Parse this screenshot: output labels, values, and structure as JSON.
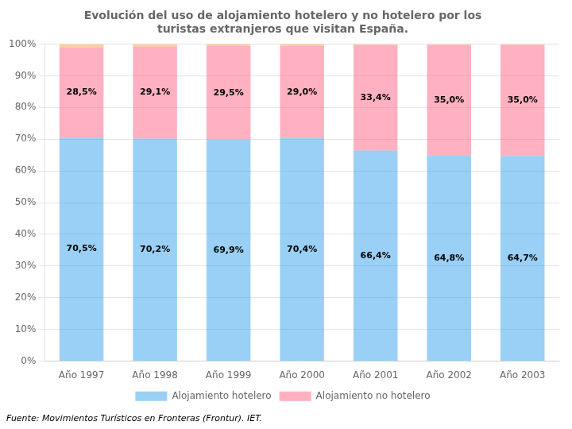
{
  "chart_data": {
    "type": "bar",
    "title": [
      "Evolución del uso de alojamiento hotelero y no hotelero por los",
      "turistas extranjeros que visitan España."
    ],
    "annotations": [
      "Fuente: Movimientos Turísticos en Fronteras (Frontur). IET."
    ],
    "categories": [
      "Año 1997",
      "Año 1998",
      "Año 1999",
      "Año 2000",
      "Año 2001",
      "Año 2002",
      "Año 2003"
    ],
    "series": [
      {
        "name": "Alojamiento hotelero",
        "values": [
          70.5,
          70.2,
          69.9,
          70.4,
          66.4,
          64.8,
          64.7
        ],
        "value_labels": [
          "70,5%",
          "70,2%",
          "69,9%",
          "70,4%",
          "66,4%",
          "64,8%",
          "64,7%"
        ],
        "data_labels": true
      },
      {
        "name": "Alojamiento no hotelero",
        "values": [
          28.5,
          29.1,
          29.5,
          29.0,
          33.4,
          35.0,
          35.0
        ],
        "value_labels": [
          "28,5%",
          "29,1%",
          "29,5%",
          "29,0%",
          "33,4%",
          "35,0%",
          "35,0%"
        ],
        "data_labels": true
      },
      {
        "values": [
          1.0,
          0.7,
          0.6,
          0.6,
          0.2,
          0.2,
          0.3
        ],
        "data_labels": false
      }
    ],
    "stacked": true,
    "ylim": [
      0,
      100
    ],
    "yticks": [
      {
        "value": 0,
        "label": "0%"
      },
      {
        "value": 10,
        "label": "10%"
      },
      {
        "value": 20,
        "label": "20%"
      },
      {
        "value": 30,
        "label": "30%"
      },
      {
        "value": 40,
        "label": "40%"
      },
      {
        "value": 50,
        "label": "50%"
      },
      {
        "value": 60,
        "label": "60%"
      },
      {
        "value": 70,
        "label": "70%"
      },
      {
        "value": 80,
        "label": "80%"
      },
      {
        "value": 90,
        "label": "90%"
      },
      {
        "value": 100,
        "label": "100%"
      }
    ],
    "grid": true,
    "legend": "bottom"
  }
}
